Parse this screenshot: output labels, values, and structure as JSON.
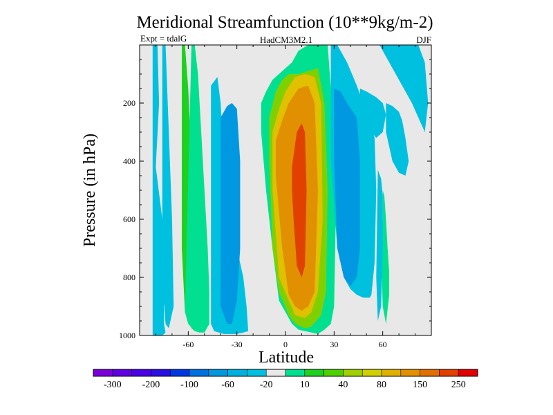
{
  "chart_data": {
    "type": "contour",
    "title": "Meridional Streamfunction (10**9kg/m-2)",
    "subtitle_left": "Expt = tdalG",
    "subtitle_center": "HadCM3M2.1",
    "subtitle_right": "DJF",
    "xlabel": "Latitude",
    "ylabel": "Pressure (in hPa)",
    "xlim": [
      -90,
      90
    ],
    "ylim": [
      1000,
      0
    ],
    "x_ticks": [
      {
        "value": -60,
        "label": "-60"
      },
      {
        "value": -30,
        "label": "-30"
      },
      {
        "value": 0,
        "label": "0"
      },
      {
        "value": 30,
        "label": "30"
      },
      {
        "value": 60,
        "label": "60"
      }
    ],
    "y_ticks": [
      {
        "value": 200,
        "label": "200"
      },
      {
        "value": 400,
        "label": "400"
      },
      {
        "value": 600,
        "label": "600"
      },
      {
        "value": 800,
        "label": "800"
      },
      {
        "value": 1000,
        "label": "1000"
      }
    ],
    "colorbar": {
      "levels": [
        -300,
        -250,
        -200,
        -150,
        -100,
        -80,
        -60,
        -40,
        -20,
        -10,
        10,
        20,
        40,
        60,
        80,
        100,
        150,
        200,
        250,
        300
      ],
      "labels": [
        "-300",
        "-200",
        "-100",
        "-60",
        "-20",
        "10",
        "40",
        "80",
        "150",
        "250"
      ],
      "colors": [
        "#7a00d8",
        "#6000e0",
        "#4a00e4",
        "#2a10e0",
        "#0038e0",
        "#0070e0",
        "#0098e0",
        "#00b0e0",
        "#00c0e0",
        "#e8e8e8",
        "#00e090",
        "#20d020",
        "#50d000",
        "#a0d000",
        "#d0d000",
        "#e0b000",
        "#e09000",
        "#e07000",
        "#e04000",
        "#e00000"
      ]
    },
    "regions": [
      {
        "name": "sh-outer-cell",
        "min_value": -20,
        "color": "#00c0e0",
        "lat": [
          -82,
          -79,
          -78,
          -80,
          -76,
          -74,
          -75,
          -75,
          -74,
          -76,
          -78,
          -82
        ],
        "p": [
          0,
          0,
          200,
          420,
          600,
          800,
          900,
          960,
          990,
          1000,
          1000,
          1000
        ]
      },
      {
        "name": "sh-outer-cell",
        "min_value": -20,
        "color": "#00c0e0",
        "lat": [
          -76,
          -74,
          -72,
          -70,
          -69,
          -72,
          -74,
          -76
        ],
        "p": [
          0,
          0,
          300,
          600,
          900,
          975,
          960,
          800
        ]
      },
      {
        "name": "sh-ferrel-cell",
        "min_value": 10,
        "color": "#20d020",
        "lat": [
          -64,
          -62,
          -60,
          -58,
          -56,
          -54,
          -54,
          -56,
          -58,
          -62,
          -64
        ],
        "p": [
          0,
          0,
          150,
          400,
          600,
          800,
          950,
          985,
          975,
          920,
          700
        ]
      },
      {
        "name": "sh-ferrel-cell",
        "min_value": 10,
        "color": "#00e090",
        "lat": [
          -58,
          -56,
          -54,
          -52,
          -50,
          -48,
          -47,
          -47,
          -50,
          -53,
          -56,
          -60,
          -62
        ],
        "p": [
          0,
          0,
          100,
          300,
          500,
          700,
          850,
          960,
          990,
          990,
          985,
          960,
          920
        ]
      },
      {
        "name": "sh-hadley-cell",
        "min_value": -20,
        "color": "#00c0e0",
        "lat": [
          -46,
          -42,
          -40,
          -38,
          -34,
          -30,
          -26,
          -24,
          -23,
          -26,
          -30,
          -38,
          -44,
          -46
        ],
        "p": [
          140,
          110,
          200,
          400,
          600,
          700,
          800,
          900,
          985,
          990,
          995,
          995,
          985,
          960
        ]
      },
      {
        "name": "sh-hadley-cell",
        "min_value": -60,
        "color": "#0098e0",
        "lat": [
          -40,
          -36,
          -33,
          -30,
          -28,
          -28,
          -30,
          -33,
          -36,
          -40
        ],
        "p": [
          250,
          210,
          200,
          220,
          400,
          700,
          880,
          960,
          960,
          900
        ]
      },
      {
        "name": "nh-hadley-cell",
        "min_value": 10,
        "color": "#00e090",
        "lat": [
          -15,
          -12,
          -8,
          -4,
          0,
          4,
          8,
          14,
          18,
          22,
          26,
          30,
          31,
          30,
          28,
          24,
          20,
          16,
          12,
          8,
          4,
          0,
          -4,
          -8,
          -12,
          -15
        ],
        "p": [
          200,
          160,
          120,
          100,
          80,
          60,
          20,
          0,
          0,
          0,
          0,
          300,
          600,
          900,
          960,
          980,
          995,
          990,
          985,
          980,
          960,
          920,
          880,
          700,
          500,
          300
        ]
      },
      {
        "name": "nh-hadley-cell",
        "min_value": 40,
        "color": "#80d000",
        "lat": [
          -10,
          -6,
          -2,
          2,
          8,
          14,
          20,
          24,
          26,
          25,
          22,
          16,
          12,
          6,
          2,
          -4,
          -8,
          -10
        ],
        "p": [
          250,
          160,
          120,
          100,
          100,
          90,
          80,
          200,
          500,
          850,
          930,
          970,
          975,
          960,
          930,
          850,
          700,
          400
        ]
      },
      {
        "name": "nh-hadley-cell",
        "min_value": 80,
        "color": "#e0c000",
        "lat": [
          -8,
          -4,
          0,
          6,
          12,
          18,
          22,
          23,
          20,
          16,
          12,
          6,
          2,
          -4,
          -8
        ],
        "p": [
          300,
          220,
          160,
          110,
          100,
          110,
          200,
          600,
          850,
          920,
          940,
          930,
          880,
          800,
          500
        ]
      },
      {
        "name": "nh-hadley-cell",
        "min_value": 150,
        "color": "#e09000",
        "lat": [
          -6,
          -2,
          2,
          8,
          14,
          18,
          20,
          18,
          14,
          10,
          6,
          2,
          -2,
          -6
        ],
        "p": [
          330,
          260,
          200,
          150,
          140,
          200,
          500,
          850,
          900,
          915,
          900,
          860,
          700,
          450
        ]
      },
      {
        "name": "nh-hadley-cell",
        "min_value": 250,
        "color": "#e04000",
        "lat": [
          4,
          7,
          10,
          12,
          13,
          12,
          10,
          7,
          5,
          4
        ],
        "p": [
          420,
          300,
          270,
          300,
          500,
          760,
          800,
          760,
          600,
          500
        ]
      },
      {
        "name": "nh-ferrel-cell",
        "min_value": -20,
        "color": "#00c0e0",
        "lat": [
          28,
          32,
          38,
          44,
          48,
          52,
          55,
          56,
          55,
          53,
          52,
          48,
          44,
          40,
          36,
          32,
          28
        ],
        "p": [
          0,
          0,
          60,
          140,
          200,
          260,
          320,
          500,
          750,
          860,
          870,
          870,
          860,
          840,
          800,
          700,
          400
        ]
      },
      {
        "name": "nh-ferrel-cell",
        "min_value": -60,
        "color": "#0098e0",
        "lat": [
          30,
          34,
          38,
          44,
          46,
          46,
          44,
          40,
          36,
          32,
          30
        ],
        "p": [
          150,
          160,
          200,
          250,
          400,
          700,
          800,
          830,
          800,
          700,
          400
        ]
      },
      {
        "name": "nh-polar-region",
        "min_value": -20,
        "color": "#00c0e0",
        "lat": [
          58,
          64,
          70,
          76,
          82,
          86,
          88,
          86,
          82,
          78
        ],
        "p": [
          0,
          0,
          0,
          0,
          0,
          60,
          200,
          300,
          250,
          200
        ]
      },
      {
        "name": "nh-polar-region",
        "min_value": -20,
        "color": "#00c0e0",
        "lat": [
          62,
          66,
          70,
          72,
          74,
          76,
          74,
          70,
          66,
          62
        ],
        "p": [
          200,
          210,
          230,
          260,
          320,
          400,
          450,
          440,
          400,
          300
        ]
      },
      {
        "name": "nh-arctic-cell",
        "min_value": -20,
        "color": "#00c0e0",
        "lat": [
          46,
          50,
          56,
          60,
          62,
          60,
          56,
          50,
          46
        ],
        "p": [
          150,
          160,
          180,
          200,
          240,
          300,
          320,
          280,
          200
        ]
      },
      {
        "name": "nh-high-lat-cell",
        "min_value": 10,
        "color": "#00e090",
        "lat": [
          60,
          61,
          62,
          63,
          64,
          64,
          62,
          60,
          59,
          60
        ],
        "p": [
          500,
          520,
          600,
          700,
          780,
          860,
          960,
          900,
          700,
          600
        ]
      },
      {
        "name": "nh-high-lat-cell",
        "min_value": -20,
        "color": "#00c0e0",
        "lat": [
          57,
          59,
          60,
          60,
          59,
          57,
          56
        ],
        "p": [
          430,
          460,
          520,
          700,
          900,
          950,
          800
        ]
      }
    ]
  }
}
